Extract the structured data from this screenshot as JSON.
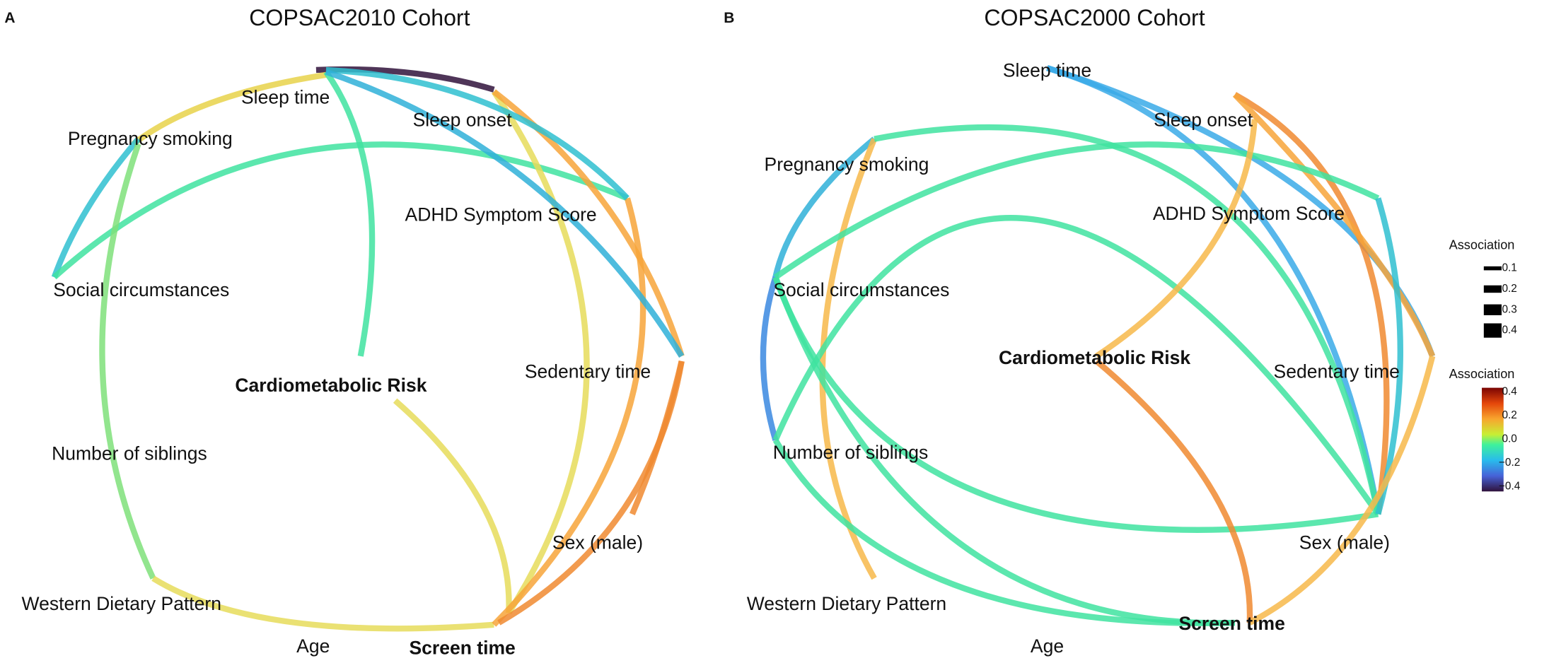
{
  "panels": [
    {
      "tag": "A",
      "title": "COPSAC2010 Cohort",
      "nodes": [
        "Sleep time",
        "Sleep onset",
        "Pregnancy smoking",
        "ADHD Symptom Score",
        "Social circumstances",
        "Sedentary time",
        "Cardiometabolic Risk",
        "Number of siblings",
        "Sex (male)",
        "Western Dietary Pattern",
        "Age",
        "Screen time"
      ]
    },
    {
      "tag": "B",
      "title": "COPSAC2000 Cohort",
      "nodes": [
        "Sleep time",
        "Sleep onset",
        "Pregnancy smoking",
        "ADHD Symptom Score",
        "Social circumstances",
        "Cardiometabolic Risk",
        "Sedentary time",
        "Number of siblings",
        "Sex (male)",
        "Western Dietary Pattern",
        "Screen time",
        "Age"
      ]
    }
  ],
  "legend": {
    "size_title": "Association",
    "size_ticks": [
      "0.1",
      "0.2",
      "0.3",
      "0.4"
    ],
    "color_title": "Association",
    "color_ticks": [
      "0.4",
      "0.2",
      "0.0",
      "−0.2",
      "−0.4"
    ]
  }
}
